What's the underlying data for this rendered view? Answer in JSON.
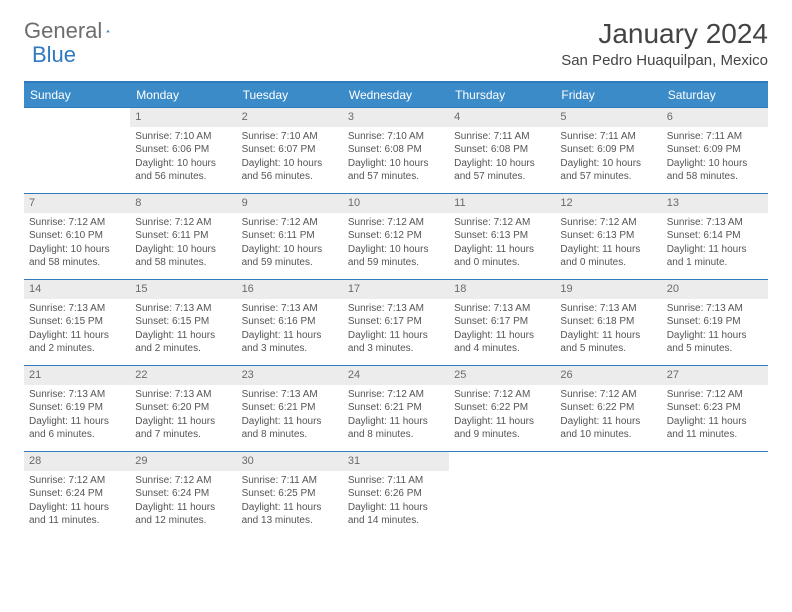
{
  "brand": {
    "part1": "General",
    "part2": "Blue"
  },
  "title": "January 2024",
  "location": "San Pedro Huaquilpan, Mexico",
  "headers": [
    "Sunday",
    "Monday",
    "Tuesday",
    "Wednesday",
    "Thursday",
    "Friday",
    "Saturday"
  ],
  "colors": {
    "accent": "#2f7ac0",
    "header_bg": "#3b8bc9",
    "daynum_bg": "#ececec"
  },
  "start_blank": 1,
  "days": [
    {
      "n": "1",
      "sr": "7:10 AM",
      "ss": "6:06 PM",
      "dl": "10 hours and 56 minutes."
    },
    {
      "n": "2",
      "sr": "7:10 AM",
      "ss": "6:07 PM",
      "dl": "10 hours and 56 minutes."
    },
    {
      "n": "3",
      "sr": "7:10 AM",
      "ss": "6:08 PM",
      "dl": "10 hours and 57 minutes."
    },
    {
      "n": "4",
      "sr": "7:11 AM",
      "ss": "6:08 PM",
      "dl": "10 hours and 57 minutes."
    },
    {
      "n": "5",
      "sr": "7:11 AM",
      "ss": "6:09 PM",
      "dl": "10 hours and 57 minutes."
    },
    {
      "n": "6",
      "sr": "7:11 AM",
      "ss": "6:09 PM",
      "dl": "10 hours and 58 minutes."
    },
    {
      "n": "7",
      "sr": "7:12 AM",
      "ss": "6:10 PM",
      "dl": "10 hours and 58 minutes."
    },
    {
      "n": "8",
      "sr": "7:12 AM",
      "ss": "6:11 PM",
      "dl": "10 hours and 58 minutes."
    },
    {
      "n": "9",
      "sr": "7:12 AM",
      "ss": "6:11 PM",
      "dl": "10 hours and 59 minutes."
    },
    {
      "n": "10",
      "sr": "7:12 AM",
      "ss": "6:12 PM",
      "dl": "10 hours and 59 minutes."
    },
    {
      "n": "11",
      "sr": "7:12 AM",
      "ss": "6:13 PM",
      "dl": "11 hours and 0 minutes."
    },
    {
      "n": "12",
      "sr": "7:12 AM",
      "ss": "6:13 PM",
      "dl": "11 hours and 0 minutes."
    },
    {
      "n": "13",
      "sr": "7:13 AM",
      "ss": "6:14 PM",
      "dl": "11 hours and 1 minute."
    },
    {
      "n": "14",
      "sr": "7:13 AM",
      "ss": "6:15 PM",
      "dl": "11 hours and 2 minutes."
    },
    {
      "n": "15",
      "sr": "7:13 AM",
      "ss": "6:15 PM",
      "dl": "11 hours and 2 minutes."
    },
    {
      "n": "16",
      "sr": "7:13 AM",
      "ss": "6:16 PM",
      "dl": "11 hours and 3 minutes."
    },
    {
      "n": "17",
      "sr": "7:13 AM",
      "ss": "6:17 PM",
      "dl": "11 hours and 3 minutes."
    },
    {
      "n": "18",
      "sr": "7:13 AM",
      "ss": "6:17 PM",
      "dl": "11 hours and 4 minutes."
    },
    {
      "n": "19",
      "sr": "7:13 AM",
      "ss": "6:18 PM",
      "dl": "11 hours and 5 minutes."
    },
    {
      "n": "20",
      "sr": "7:13 AM",
      "ss": "6:19 PM",
      "dl": "11 hours and 5 minutes."
    },
    {
      "n": "21",
      "sr": "7:13 AM",
      "ss": "6:19 PM",
      "dl": "11 hours and 6 minutes."
    },
    {
      "n": "22",
      "sr": "7:13 AM",
      "ss": "6:20 PM",
      "dl": "11 hours and 7 minutes."
    },
    {
      "n": "23",
      "sr": "7:13 AM",
      "ss": "6:21 PM",
      "dl": "11 hours and 8 minutes."
    },
    {
      "n": "24",
      "sr": "7:12 AM",
      "ss": "6:21 PM",
      "dl": "11 hours and 8 minutes."
    },
    {
      "n": "25",
      "sr": "7:12 AM",
      "ss": "6:22 PM",
      "dl": "11 hours and 9 minutes."
    },
    {
      "n": "26",
      "sr": "7:12 AM",
      "ss": "6:22 PM",
      "dl": "11 hours and 10 minutes."
    },
    {
      "n": "27",
      "sr": "7:12 AM",
      "ss": "6:23 PM",
      "dl": "11 hours and 11 minutes."
    },
    {
      "n": "28",
      "sr": "7:12 AM",
      "ss": "6:24 PM",
      "dl": "11 hours and 11 minutes."
    },
    {
      "n": "29",
      "sr": "7:12 AM",
      "ss": "6:24 PM",
      "dl": "11 hours and 12 minutes."
    },
    {
      "n": "30",
      "sr": "7:11 AM",
      "ss": "6:25 PM",
      "dl": "11 hours and 13 minutes."
    },
    {
      "n": "31",
      "sr": "7:11 AM",
      "ss": "6:26 PM",
      "dl": "11 hours and 14 minutes."
    }
  ],
  "labels": {
    "sunrise": "Sunrise: ",
    "sunset": "Sunset: ",
    "daylight": "Daylight: "
  }
}
